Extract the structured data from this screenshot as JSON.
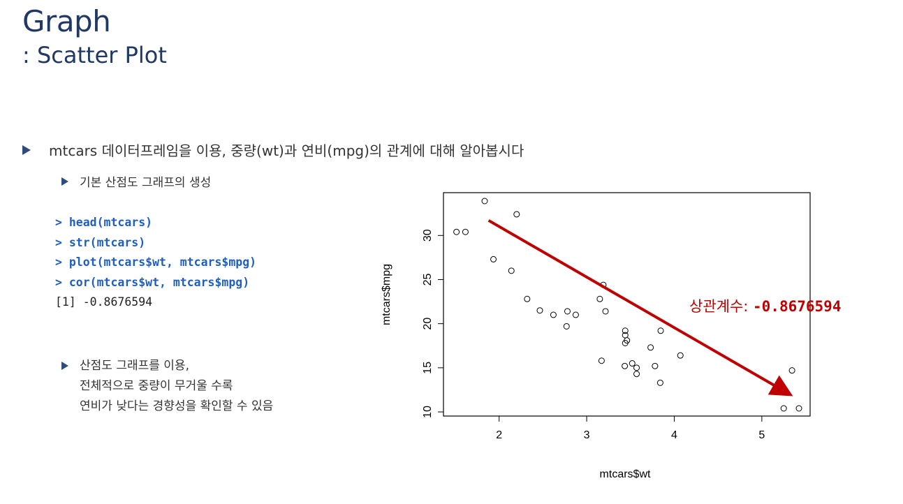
{
  "header": {
    "title": "Graph",
    "subtitle": ": Scatter Plot"
  },
  "bullets": {
    "main": "mtcars 데이터프레임을 이용, 중량(wt)과 연비(mpg)의 관계에 대해 알아봅시다",
    "sub1": "기본 산점도 그래프의 생성",
    "sub2_lines": [
      "산점도 그래프를 이용,",
      "전체적으로 중량이 무거울 수록",
      "연비가 낮다는 경향성을 확인할 수 있음"
    ]
  },
  "code": {
    "lines": [
      "> head(mtcars)",
      "> str(mtcars)",
      "> plot(mtcars$wt, mtcars$mpg)",
      "> cor(mtcars$wt, mtcars$mpg)"
    ],
    "output": "[1] -0.8676594"
  },
  "annotation": {
    "label": "상관계수: ",
    "value": "-0.8676594"
  },
  "colors": {
    "title": "#1f3864",
    "code_command": "#1f5fbf",
    "trend_arrow": "#c00000",
    "bullet_marker": "#2f4b7c"
  },
  "chart_data": {
    "type": "scatter",
    "xlabel": "mtcars$wt",
    "ylabel": "mtcars$mpg",
    "xlim": [
      1.5,
      5.4
    ],
    "ylim": [
      10.4,
      33.9
    ],
    "xticks": [
      "2",
      "3",
      "4",
      "5"
    ],
    "yticks": [
      "10",
      "15",
      "20",
      "25",
      "30"
    ],
    "grid": false,
    "x": [
      2.62,
      2.875,
      2.32,
      3.215,
      3.44,
      3.46,
      3.57,
      3.19,
      3.15,
      3.44,
      3.44,
      4.07,
      3.73,
      3.78,
      5.25,
      5.424,
      5.345,
      2.2,
      1.615,
      1.835,
      2.465,
      3.52,
      3.435,
      3.84,
      3.845,
      1.935,
      2.14,
      1.513,
      3.17,
      2.77,
      3.57,
      2.78
    ],
    "y": [
      21.0,
      21.0,
      22.8,
      21.4,
      18.7,
      18.1,
      14.3,
      24.4,
      22.8,
      19.2,
      17.8,
      16.4,
      17.3,
      15.2,
      10.4,
      10.4,
      14.7,
      32.4,
      30.4,
      33.9,
      21.5,
      15.5,
      15.2,
      13.3,
      19.2,
      27.3,
      26.0,
      30.4,
      15.8,
      19.7,
      15.0,
      21.4
    ],
    "trend_arrow": {
      "from": [
        1.88,
        31.7
      ],
      "to": [
        5.3,
        12.1
      ]
    }
  }
}
